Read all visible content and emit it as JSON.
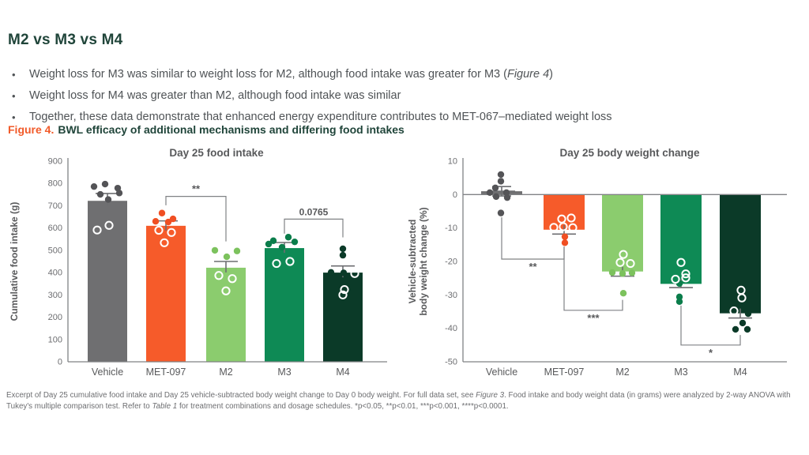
{
  "header": {
    "title": "M2 vs M3 vs M4"
  },
  "bullets": [
    {
      "parts": [
        {
          "t": "Weight loss for M3 was similar to weight loss for M2, although food intake was greater for M3 ("
        },
        {
          "t": "Figure 4",
          "i": true
        },
        {
          "t": ")"
        }
      ]
    },
    {
      "parts": [
        {
          "t": "Weight loss for M4 was greater than M2, although food intake was similar"
        }
      ]
    },
    {
      "parts": [
        {
          "t": "Together, these data demonstrate that enhanced energy expenditure contributes to MET-067–mediated weight loss"
        }
      ]
    }
  ],
  "caption": {
    "label": "Figure 4.",
    "text": "BWL efficacy of additional mechanisms and differing food intakes"
  },
  "footer": {
    "parts": [
      {
        "t": "Excerpt of Day 25 cumulative food intake and Day 25 vehicle-subtracted body weight change to Day 0 body weight. For full data set, see "
      },
      {
        "t": "Figure 3",
        "i": true
      },
      {
        "t": ". Food intake and body weight data (in grams) were analyzed by 2-way ANOVA with Tukey's multiple comparison test. Refer to "
      },
      {
        "t": "Table 1",
        "i": true
      },
      {
        "t": " for treatment combinations and dosage schedules. *p<0.05, **p<0.01, ***p<0.001, ****p<0.0001."
      }
    ]
  },
  "colors": {
    "accent_orange": "#f15a29",
    "heading_green": "#20453a",
    "axis_gray": "#808285",
    "label_gray": "#58595b",
    "tick_gray": "#6d6e71"
  },
  "chart_data": [
    {
      "type": "bar",
      "title": "Day 25 food intake",
      "ylabel": "Cumulative food intake (g)",
      "ylim": [
        0,
        900
      ],
      "yticks": [
        900,
        800,
        700,
        600,
        500,
        400,
        300,
        200,
        100,
        0
      ],
      "grid": false,
      "categories": [
        "Vehicle",
        "MET-097",
        "M2",
        "M3",
        "M4"
      ],
      "values": [
        722,
        610,
        422,
        510,
        400
      ],
      "bar_colors": [
        "#6f6f71",
        "#f65b2a",
        "#8bcc6e",
        "#0e8a55",
        "#0b3a28"
      ],
      "point_colors": [
        "#545457",
        "#f04f23",
        "#7cc25d",
        "#0b7d4b",
        "#0b3a28"
      ],
      "sem": [
        33,
        22,
        28,
        25,
        30
      ],
      "sem_dir": [
        "up",
        "up",
        "up",
        "up",
        "up"
      ],
      "points_filled": [
        [
          [
            786,
            -17
          ],
          [
            797,
            -3
          ],
          [
            779,
            13
          ],
          [
            757,
            15
          ],
          [
            751,
            -9
          ],
          [
            728,
            1
          ]
        ],
        [
          [
            667,
            -5
          ],
          [
            641,
            9
          ],
          [
            630,
            -13
          ],
          [
            627,
            3
          ]
        ],
        [
          [
            500,
            -14
          ],
          [
            471,
            1
          ],
          [
            497,
            14
          ]
        ],
        [
          [
            559,
            5
          ],
          [
            543,
            -14
          ],
          [
            538,
            13
          ],
          [
            528,
            -20
          ],
          [
            514,
            -3
          ]
        ],
        [
          [
            507,
            0
          ],
          [
            478,
            0
          ],
          [
            401,
            -15
          ],
          [
            399,
            1
          ]
        ]
      ],
      "points_open": [
        [
          [
            591,
            -13
          ],
          [
            612,
            2
          ]
        ],
        [
          [
            590,
            -9
          ],
          [
            580,
            7
          ],
          [
            534,
            -2
          ]
        ],
        [
          [
            387,
            -9
          ],
          [
            373,
            8
          ],
          [
            318,
            0
          ]
        ],
        [
          [
            441,
            -10
          ],
          [
            450,
            7
          ]
        ],
        [
          [
            396,
            15
          ],
          [
            324,
            2
          ],
          [
            300,
            0
          ]
        ]
      ],
      "brackets": [
        {
          "from": "MET-097",
          "to": "M2",
          "level": 742,
          "from_end": 702,
          "to_end": 540,
          "label": "**",
          "label_side": "above"
        },
        {
          "from": "M3",
          "to": "M4",
          "level": 640,
          "from_end": 575,
          "to_end": 558,
          "label": "0.0765",
          "label_side": "above"
        }
      ]
    },
    {
      "type": "bar",
      "title": "Day 25 body weight change",
      "ylabel_lines": [
        "Vehicle-subtracted",
        "body weight change (%)"
      ],
      "ylim": [
        -50,
        10
      ],
      "yticks": [
        10,
        0,
        -10,
        -20,
        -30,
        -40,
        -50
      ],
      "grid": false,
      "zero_line": true,
      "categories": [
        "Vehicle",
        "MET-097",
        "M2",
        "M3",
        "M4"
      ],
      "values": [
        1,
        -10.5,
        -23,
        -26.7,
        -35.5
      ],
      "bar_colors": [
        "#6f6f71",
        "#f65b2a",
        "#8bcc6e",
        "#0e8a55",
        "#0b3a28"
      ],
      "point_colors": [
        "#545457",
        "#f04f23",
        "#7cc25d",
        "#0b7d4b",
        "#0b3a28"
      ],
      "sem": [
        1.4,
        1.3,
        1.4,
        1.1,
        1.4
      ],
      "sem_dir": [
        "both",
        "down",
        "down",
        "down",
        "down"
      ],
      "points_filled": [
        [
          [
            6,
            -1
          ],
          [
            4,
            -1
          ],
          [
            2,
            -8
          ],
          [
            0.6,
            -15
          ],
          [
            0.6,
            6
          ],
          [
            -0.6,
            -7
          ],
          [
            -0.9,
            7
          ],
          [
            -5.5,
            -1
          ]
        ],
        [
          [
            -12.6,
            1
          ],
          [
            -14.4,
            1
          ]
        ],
        [
          [
            -23.3,
            -13
          ],
          [
            -23.6,
            0
          ],
          [
            -23.4,
            12
          ],
          [
            -29.5,
            1
          ]
        ],
        [
          [
            -26.6,
            -2
          ],
          [
            -30.6,
            -2
          ],
          [
            -32,
            -2
          ]
        ],
        [
          [
            -35.6,
            10
          ],
          [
            -38.4,
            3
          ],
          [
            -40.3,
            -6
          ],
          [
            -40.3,
            9
          ]
        ]
      ],
      "points_open": [
        [],
        [
          [
            -7.3,
            -3
          ],
          [
            -7,
            9
          ],
          [
            -9.8,
            -13
          ],
          [
            -9.6,
            -1
          ],
          [
            -9.9,
            11
          ]
        ],
        [
          [
            -17.9,
            1
          ],
          [
            -20.3,
            -3
          ],
          [
            -20.6,
            10
          ]
        ],
        [
          [
            -20.3,
            0
          ],
          [
            -23.7,
            6
          ],
          [
            -24.9,
            6
          ],
          [
            -25.3,
            -7
          ]
        ],
        [
          [
            -28.6,
            1
          ],
          [
            -30.9,
            2
          ],
          [
            -34.8,
            -8
          ]
        ]
      ],
      "brackets": [
        {
          "from": "Vehicle",
          "to": "MET-097",
          "level": -19.3,
          "from_end": -6.8,
          "to_end": -15.5,
          "label": "**",
          "label_side": "below"
        },
        {
          "from": "MET-097",
          "to": "M2",
          "level": -34.6,
          "from_end": -15.8,
          "to_end": -31.5,
          "label": "***",
          "label_side": "below"
        },
        {
          "from": "M3",
          "to": "M4",
          "level": -45,
          "from_end": -33.2,
          "to_end": -42,
          "label": "*",
          "label_side": "below"
        }
      ]
    }
  ]
}
